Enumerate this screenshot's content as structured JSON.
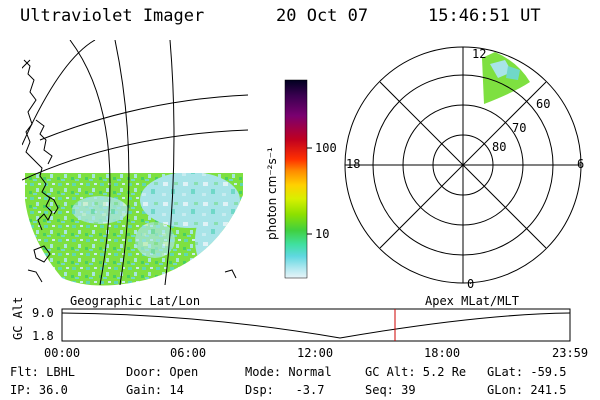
{
  "header": {
    "title": "Ultraviolet Imager",
    "date": "20 Oct 07",
    "time": "15:46:51 UT"
  },
  "map": {
    "label": "Geographic Lat/Lon"
  },
  "colorbar": {
    "unit_label": "photon cm⁻²s⁻¹",
    "ticks": [
      "100",
      "10"
    ],
    "colors": [
      "#000020",
      "#3a0050",
      "#7a0070",
      "#c00020",
      "#ff3000",
      "#ff8c00",
      "#ffd000",
      "#d8f000",
      "#8ce000",
      "#40d040",
      "#40e0a0",
      "#60d8e0",
      "#b0e8f0",
      "#e8f4f8"
    ]
  },
  "polar_plot": {
    "label": "Apex MLat/MLT",
    "mlt_labels": [
      "12",
      "18",
      "6",
      "0"
    ],
    "mlat_labels": [
      "60",
      "70",
      "80"
    ]
  },
  "altitude_plot": {
    "axis_title": "GC Alt",
    "y_ticks": [
      "9.0",
      "1.8"
    ],
    "x_ticks": [
      "00:00",
      "06:00",
      "12:00",
      "18:00",
      "23:59"
    ],
    "current_time_marker": "15:46:51"
  },
  "footer": {
    "row1": [
      {
        "key": "flt",
        "text": "Flt: LBHL"
      },
      {
        "key": "door",
        "text": "Door: Open"
      },
      {
        "key": "mode",
        "text": "Mode: Normal"
      },
      {
        "key": "gcalt",
        "text": "GC Alt: 5.2 Re"
      },
      {
        "key": "glat",
        "text": "GLat: -59.5"
      }
    ],
    "row2": [
      {
        "key": "ip",
        "text": "IP: 36.0"
      },
      {
        "key": "gain",
        "text": "Gain: 14"
      },
      {
        "key": "dsp",
        "text": "Dsp:   -3.7"
      },
      {
        "key": "seq",
        "text": "Seq: 39"
      },
      {
        "key": "glon",
        "text": "GLon: 241.5"
      }
    ]
  },
  "colors": {
    "aurora_green": "#7ee040",
    "aurora_cyan": "#70d8c8",
    "aurora_light": "#c8ecf0",
    "time_marker": "#cc0000"
  }
}
